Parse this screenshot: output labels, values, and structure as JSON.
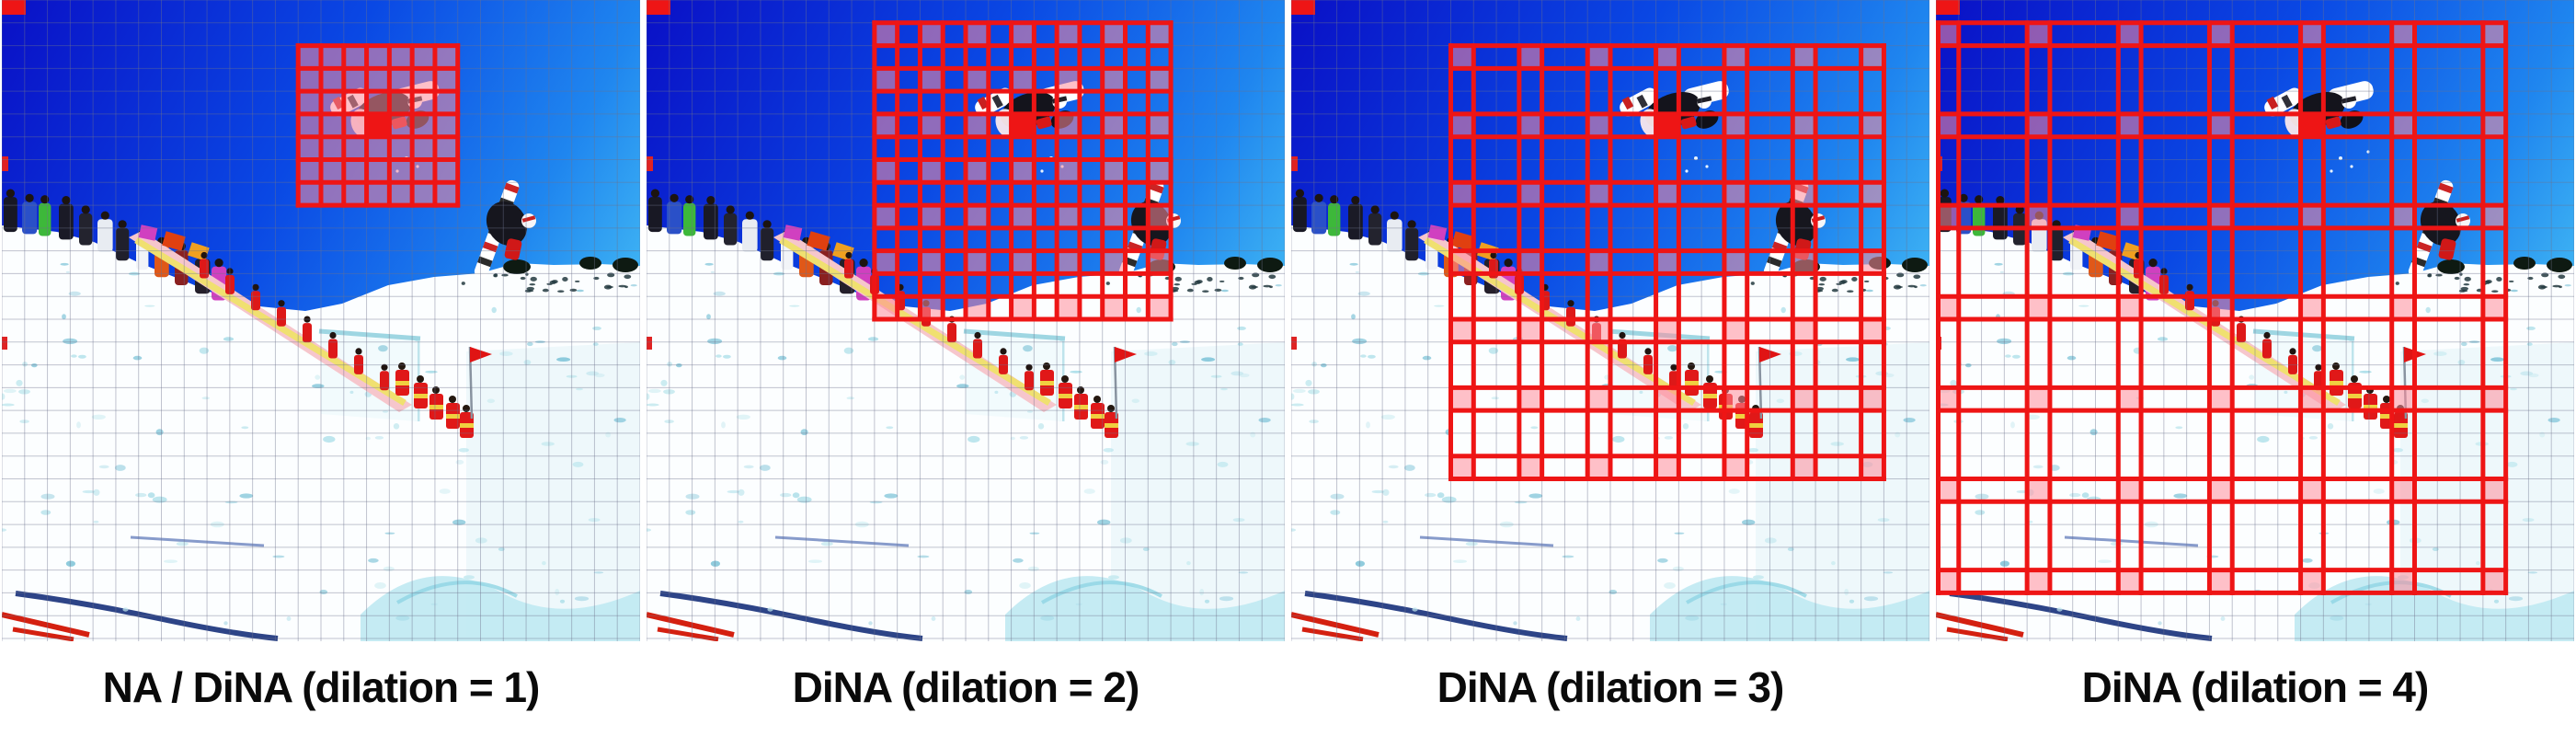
{
  "figure": {
    "panels": [
      {
        "caption": "NA / DiNA (dilation = 1)",
        "dilation": 1,
        "origin_col": 13,
        "origin_row": 2
      },
      {
        "caption": "DiNA (dilation = 2)",
        "dilation": 2,
        "origin_col": 10,
        "origin_row": 1
      },
      {
        "caption": "DiNA (dilation = 3)",
        "dilation": 3,
        "origin_col": 7,
        "origin_row": 2
      },
      {
        "caption": "DiNA (dilation = 4)",
        "dilation": 4,
        "origin_col": 0,
        "origin_row": 1
      }
    ],
    "grid": {
      "tokens_per_side": 28,
      "kernel": 7,
      "query_col": 16,
      "query_row": 5
    },
    "colors": {
      "attention_line": "#ee1515",
      "attention_fill": "rgba(255,140,155,0.55)",
      "query_fill": "#ee1515",
      "token_grid_line": "rgba(110,115,140,0.42)",
      "caption_text": "#0a0a0a"
    }
  }
}
